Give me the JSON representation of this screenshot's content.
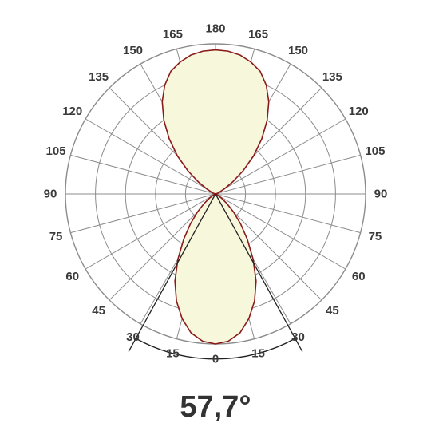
{
  "chart_data": {
    "type": "polar",
    "angle_ticks_left": [
      "0",
      "15",
      "30",
      "45",
      "60",
      "75",
      "90",
      "105",
      "120",
      "135",
      "150",
      "165",
      "180"
    ],
    "angle_ticks_right": [
      "15",
      "30",
      "45",
      "60",
      "75",
      "90",
      "105",
      "120",
      "135",
      "150",
      "165"
    ],
    "radial_rings": 5,
    "grid": true,
    "beam_angle_label": "57,7°",
    "beam_angle_deg": 57.7,
    "colors": {
      "curve": "#8b1a1a",
      "fill": "#f7f7dc",
      "grid": "#8c8c8c",
      "beam_lines": "#222222"
    },
    "series": [
      {
        "angles_deg": [
          0,
          5,
          10,
          15,
          20,
          25,
          30,
          35,
          40,
          45,
          50,
          55,
          60,
          70,
          80,
          90
        ],
        "values": [
          1.0,
          0.985,
          0.94,
          0.86,
          0.76,
          0.64,
          0.5,
          0.37,
          0.26,
          0.17,
          0.1,
          0.05,
          0.02,
          0.0,
          0.0,
          0.0
        ]
      },
      {
        "angles_deg": [
          180,
          175,
          170,
          165,
          160,
          155,
          150,
          145,
          140,
          135,
          130,
          125,
          120,
          110,
          100,
          90
        ],
        "values": [
          0.96,
          0.955,
          0.94,
          0.91,
          0.87,
          0.8,
          0.71,
          0.6,
          0.48,
          0.36,
          0.24,
          0.14,
          0.07,
          0.02,
          0.0,
          0.0
        ]
      }
    ]
  }
}
